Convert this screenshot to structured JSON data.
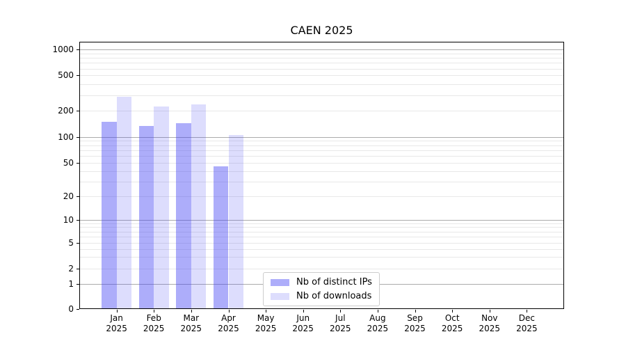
{
  "page": {
    "background": "#ffffff"
  },
  "chart_data": {
    "type": "bar",
    "title": "CAEN 2025",
    "year_label": "2025",
    "months": [
      "Jan",
      "Feb",
      "Mar",
      "Apr",
      "May",
      "Jun",
      "Jul",
      "Aug",
      "Sep",
      "Oct",
      "Nov",
      "Dec"
    ],
    "categories": [
      "Jan 2025",
      "Feb 2025",
      "Mar 2025",
      "Apr 2025",
      "May 2025",
      "Jun 2025",
      "Jul 2025",
      "Aug 2025",
      "Sep 2025",
      "Oct 2025",
      "Nov 2025",
      "Dec 2025"
    ],
    "series": [
      {
        "name": "Nb of distinct IPs",
        "color": "rgba(64,64,244,0.43)",
        "values": [
          150,
          135,
          145,
          45,
          null,
          null,
          null,
          null,
          null,
          null,
          null,
          null
        ]
      },
      {
        "name": "Nb of downloads",
        "color": "rgba(64,64,244,0.18)",
        "values": [
          290,
          225,
          235,
          105,
          null,
          null,
          null,
          null,
          null,
          null,
          null,
          null
        ]
      }
    ],
    "y_ticks": [
      0,
      1,
      2,
      5,
      10,
      20,
      50,
      100,
      200,
      500,
      1000
    ],
    "y_scale": "log-with-zero",
    "ylim": [
      0,
      1250
    ],
    "grid": "both",
    "legend": {
      "position": "lower center",
      "border_color": "#cccccc",
      "background": "#ffffff"
    },
    "style": {
      "major_grid_color": "#ababab",
      "minor_grid_color": "#e8e8e8",
      "axis_color": "#000000",
      "text_color": "#000000"
    }
  }
}
